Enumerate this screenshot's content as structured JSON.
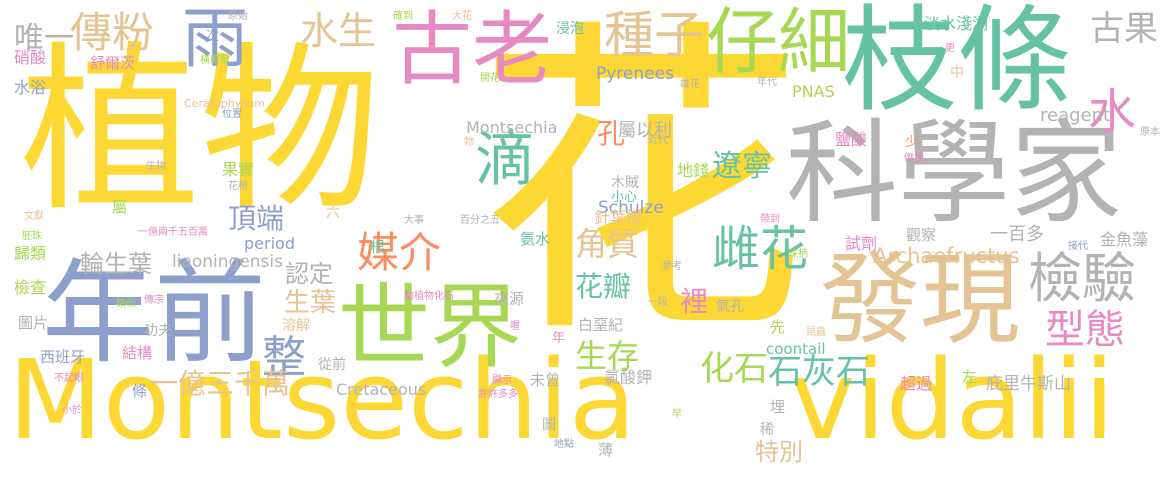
{
  "palette": {
    "yellow": "#fdd835",
    "green": "#66c2a5",
    "gray": "#b3b3b3",
    "tan": "#e5c494",
    "pink": "#e78ac3",
    "blue": "#8da0cb",
    "lime": "#a6d854",
    "orange": "#fc8d62"
  },
  "words": [
    {
      "text": "Montsechia",
      "color": "yellow"
    },
    {
      "text": "vidalii",
      "color": "yellow"
    },
    {
      "text": "花",
      "color": "yellow"
    },
    {
      "text": "植物",
      "color": "yellow"
    },
    {
      "text": "枝條",
      "color": "green"
    },
    {
      "text": "科學家",
      "color": "gray"
    },
    {
      "text": "發現",
      "color": "tan"
    },
    {
      "text": "年前",
      "color": "blue"
    },
    {
      "text": "世界",
      "color": "lime"
    },
    {
      "text": "古老",
      "color": "pink"
    },
    {
      "text": "仔細",
      "color": "lime"
    },
    {
      "text": "雨",
      "color": "blue"
    },
    {
      "text": "種子",
      "color": "tan"
    },
    {
      "text": "傳粉",
      "color": "tan"
    },
    {
      "text": "水生",
      "color": "tan"
    },
    {
      "text": "檢驗",
      "color": "gray"
    },
    {
      "text": "古果",
      "color": "gray"
    },
    {
      "text": "水",
      "color": "pink"
    },
    {
      "text": "型態",
      "color": "pink"
    },
    {
      "text": "雌花",
      "color": "green"
    },
    {
      "text": "遼寧",
      "color": "green"
    },
    {
      "text": "滴",
      "color": "green"
    },
    {
      "text": "媒介",
      "color": "orange"
    },
    {
      "text": "唯一",
      "color": "gray"
    },
    {
      "text": "頂端",
      "color": "blue"
    },
    {
      "text": "角質",
      "color": "tan"
    },
    {
      "text": "花瓣",
      "color": "green"
    },
    {
      "text": "生存",
      "color": "lime"
    },
    {
      "text": "化石",
      "color": "lime"
    },
    {
      "text": "石灰石",
      "color": "green"
    },
    {
      "text": "整",
      "color": "blue"
    },
    {
      "text": "一億三千萬",
      "color": "tan"
    },
    {
      "text": "輪生葉",
      "color": "gray"
    },
    {
      "text": "認定",
      "color": "gray"
    },
    {
      "text": "生葉",
      "color": "tan"
    },
    {
      "text": "特別",
      "color": "tan"
    },
    {
      "text": "孔",
      "color": "orange"
    },
    {
      "text": "裡",
      "color": "pink"
    },
    {
      "text": "屬以利",
      "color": "gray"
    },
    {
      "text": "Montsechia",
      "color": "gray"
    },
    {
      "text": "liaoningensis",
      "color": "gray"
    },
    {
      "text": "Archaefructus",
      "color": "tan"
    },
    {
      "text": "Pyrenees",
      "color": "blue"
    },
    {
      "text": "PNAS",
      "color": "lime"
    },
    {
      "text": "reagent",
      "color": "gray"
    },
    {
      "text": "Schulze",
      "color": "blue"
    },
    {
      "text": "Cretaceous",
      "color": "gray"
    },
    {
      "text": "period",
      "color": "blue"
    },
    {
      "text": "coontail",
      "color": "green"
    },
    {
      "text": "Ceratophyllum",
      "color": "tan"
    },
    {
      "text": "淡水淺湖",
      "color": "green"
    },
    {
      "text": "庇里牛斯山",
      "color": "gray"
    },
    {
      "text": "金魚藻",
      "color": "gray"
    },
    {
      "text": "一百多",
      "color": "gray"
    },
    {
      "text": "觀察",
      "color": "gray"
    },
    {
      "text": "試劑",
      "color": "pink"
    },
    {
      "text": "鹽酸",
      "color": "pink"
    },
    {
      "text": "超過",
      "color": "pink"
    },
    {
      "text": "左",
      "color": "lime"
    },
    {
      "text": "地錢",
      "color": "lime"
    },
    {
      "text": "針葉樹",
      "color": "tan"
    },
    {
      "text": "氨水",
      "color": "green"
    },
    {
      "text": "木賊",
      "color": "gray"
    },
    {
      "text": "小心",
      "color": "green"
    },
    {
      "text": "白堊紀",
      "color": "gray"
    },
    {
      "text": "氣孔",
      "color": "gray"
    },
    {
      "text": "氯酸鉀",
      "color": "gray"
    },
    {
      "text": "未曾",
      "color": "gray"
    },
    {
      "text": "先",
      "color": "lime"
    },
    {
      "text": "來源",
      "color": "gray"
    },
    {
      "text": "根",
      "color": "green"
    },
    {
      "text": "從前",
      "color": "gray"
    },
    {
      "text": "溶解",
      "color": "tan"
    },
    {
      "text": "功夫",
      "color": "gray"
    },
    {
      "text": "結構",
      "color": "pink"
    },
    {
      "text": "西班牙",
      "color": "blue"
    },
    {
      "text": "檢查",
      "color": "lime"
    },
    {
      "text": "歸類",
      "color": "lime"
    },
    {
      "text": "圖片",
      "color": "gray"
    },
    {
      "text": "果實",
      "color": "lime"
    },
    {
      "text": "屬",
      "color": "lime"
    },
    {
      "text": "硝酸",
      "color": "pink"
    },
    {
      "text": "水浴",
      "color": "blue"
    },
    {
      "text": "舒爾茨",
      "color": "pink"
    },
    {
      "text": "浸泡",
      "color": "green"
    },
    {
      "text": "條",
      "color": "blue"
    },
    {
      "text": "埋",
      "color": "gray"
    },
    {
      "text": "稀",
      "color": "gray"
    },
    {
      "text": "薄",
      "color": "gray"
    },
    {
      "text": "圖",
      "color": "gray"
    },
    {
      "text": "年",
      "color": "pink"
    },
    {
      "text": "六",
      "color": "tan"
    },
    {
      "text": "一段",
      "color": "gray"
    },
    {
      "text": "次",
      "color": "blue"
    },
    {
      "text": "原始",
      "color": "gray"
    },
    {
      "text": "確到",
      "color": "lime"
    },
    {
      "text": "大花",
      "color": "tan"
    },
    {
      "text": "橫原敬",
      "color": "lime"
    },
    {
      "text": "開花",
      "color": "lime"
    },
    {
      "text": "雄花",
      "color": "gray"
    },
    {
      "text": "更",
      "color": "pink"
    },
    {
      "text": "中",
      "color": "tan"
    },
    {
      "text": "年代",
      "color": "gray"
    },
    {
      "text": "位置",
      "color": "blue"
    },
    {
      "text": "生物",
      "color": "gray"
    },
    {
      "text": "花粉",
      "color": "gray"
    },
    {
      "text": "物",
      "color": "tan"
    },
    {
      "text": "近代",
      "color": "gray"
    },
    {
      "text": "少",
      "color": "orange"
    },
    {
      "text": "倒置",
      "color": "pink"
    },
    {
      "text": "原本",
      "color": "gray"
    },
    {
      "text": "文獻",
      "color": "tan"
    },
    {
      "text": "胚珠",
      "color": "lime"
    },
    {
      "text": "一億兩千五百萬",
      "color": "pink"
    },
    {
      "text": "大事",
      "color": "gray"
    },
    {
      "text": "百分之五",
      "color": "gray"
    },
    {
      "text": "帶到",
      "color": "pink"
    },
    {
      "text": "珠柄",
      "color": "lime"
    },
    {
      "text": "接代",
      "color": "blue"
    },
    {
      "text": "參考",
      "color": "gray"
    },
    {
      "text": "昆蟲",
      "color": "tan"
    },
    {
      "text": "類似",
      "color": "lime"
    },
    {
      "text": "傳宗",
      "color": "pink"
    },
    {
      "text": "動植物化石",
      "color": "pink"
    },
    {
      "text": "喔",
      "color": "pink"
    },
    {
      "text": "顯示",
      "color": "pink"
    },
    {
      "text": "許許多多",
      "color": "pink"
    },
    {
      "text": "不起眼",
      "color": "pink"
    },
    {
      "text": "小於",
      "color": "pink"
    },
    {
      "text": "地點",
      "color": "blue"
    },
    {
      "text": "早",
      "color": "lime"
    }
  ]
}
